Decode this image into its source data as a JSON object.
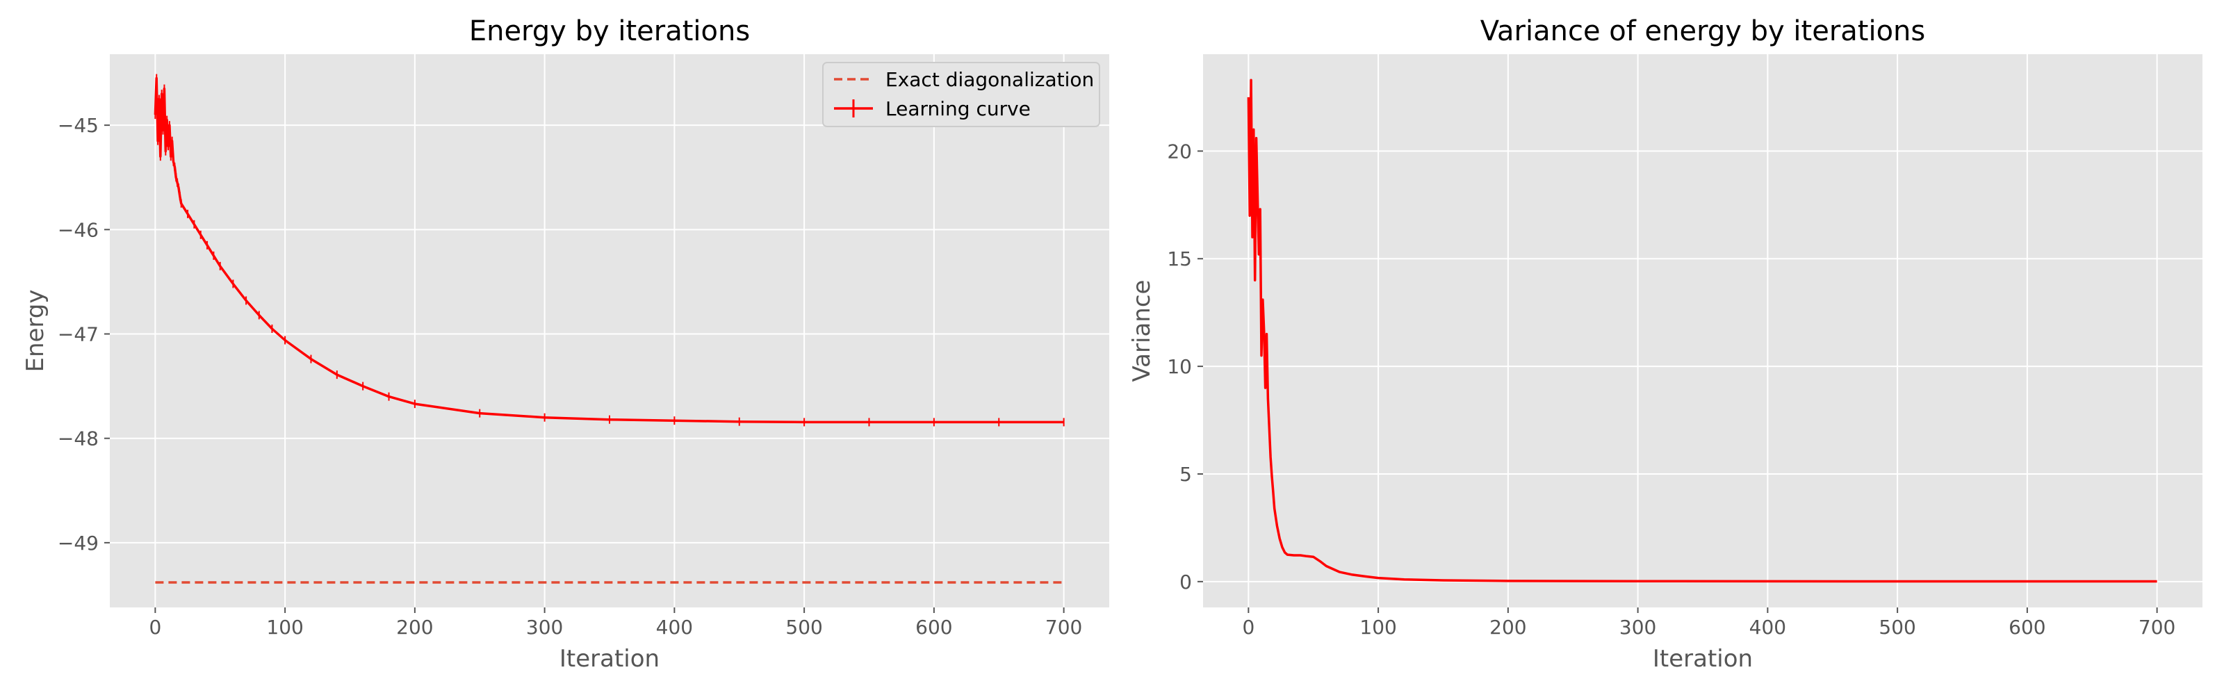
{
  "colors": {
    "plot_bg": "#e5e5e5",
    "grid": "#ffffff",
    "learning_curve": "#ff0000",
    "exact": "#e24a33",
    "tick_text": "#555555"
  },
  "chart_data": [
    {
      "type": "line",
      "title": "Energy by iterations",
      "xlabel": "Iteration",
      "ylabel": "Energy",
      "xlim": [
        -35,
        735
      ],
      "ylim": [
        -49.62,
        -44.32
      ],
      "xticks": [
        0,
        100,
        200,
        300,
        400,
        500,
        600,
        700
      ],
      "yticks": [
        -49,
        -48,
        -47,
        -46,
        -45
      ],
      "xtick_labels": [
        "0",
        "100",
        "200",
        "300",
        "400",
        "500",
        "600",
        "700"
      ],
      "ytick_labels": [
        "−49",
        "−48",
        "−47",
        "−46",
        "−45"
      ],
      "grid": true,
      "legend": {
        "placement": "top-right",
        "entries": [
          "Exact diagonalization",
          "Learning curve"
        ]
      },
      "series": [
        {
          "name": "Exact diagonalization",
          "style": "dashed",
          "color": "#e24a33",
          "x": [
            0,
            700
          ],
          "y": [
            -49.38,
            -49.38
          ]
        },
        {
          "name": "Learning curve",
          "style": "solid-with-errorbars",
          "color": "#ff0000",
          "x": [
            0,
            1,
            2,
            3,
            4,
            5,
            6,
            7,
            8,
            9,
            10,
            11,
            12,
            13,
            14,
            15,
            16,
            17,
            18,
            19,
            20,
            25,
            30,
            35,
            40,
            45,
            50,
            60,
            70,
            80,
            90,
            100,
            120,
            140,
            160,
            180,
            200,
            250,
            300,
            350,
            400,
            450,
            500,
            550,
            600,
            650,
            700
          ],
          "y": [
            -44.9,
            -44.55,
            -45.15,
            -44.75,
            -45.3,
            -44.7,
            -45.05,
            -44.65,
            -45.25,
            -44.95,
            -45.2,
            -45.0,
            -45.3,
            -45.15,
            -45.35,
            -45.4,
            -45.5,
            -45.55,
            -45.6,
            -45.68,
            -45.75,
            -45.85,
            -45.95,
            -46.05,
            -46.15,
            -46.25,
            -46.35,
            -46.52,
            -46.68,
            -46.82,
            -46.95,
            -47.06,
            -47.24,
            -47.39,
            -47.5,
            -47.6,
            -47.67,
            -47.76,
            -47.8,
            -47.82,
            -47.83,
            -47.84,
            -47.845,
            -47.845,
            -47.845,
            -47.845,
            -47.845
          ]
        }
      ]
    },
    {
      "type": "line",
      "title": "Variance of energy by iterations",
      "xlabel": "Iteration",
      "ylabel": "Variance",
      "xlim": [
        -35,
        735
      ],
      "ylim": [
        -1.2,
        24.5
      ],
      "xticks": [
        0,
        100,
        200,
        300,
        400,
        500,
        600,
        700
      ],
      "yticks": [
        0,
        5,
        10,
        15,
        20
      ],
      "xtick_labels": [
        "0",
        "100",
        "200",
        "300",
        "400",
        "500",
        "600",
        "700"
      ],
      "ytick_labels": [
        "0",
        "5",
        "10",
        "15",
        "20"
      ],
      "grid": true,
      "series": [
        {
          "color": "#ff0000",
          "style": "solid",
          "x": [
            0,
            1,
            2,
            3,
            4,
            5,
            6,
            7,
            8,
            9,
            10,
            11,
            12,
            13,
            14,
            15,
            16,
            17,
            18,
            19,
            20,
            22,
            24,
            26,
            28,
            30,
            35,
            40,
            45,
            50,
            55,
            60,
            70,
            80,
            90,
            100,
            120,
            150,
            200,
            300,
            400,
            500,
            600,
            700
          ],
          "y": [
            22.5,
            17.0,
            23.3,
            16.0,
            21.0,
            14.0,
            20.6,
            18.0,
            15.2,
            17.3,
            10.5,
            13.1,
            11.6,
            9.0,
            11.5,
            8.5,
            7.2,
            5.8,
            4.9,
            4.2,
            3.4,
            2.6,
            2.0,
            1.6,
            1.35,
            1.25,
            1.22,
            1.22,
            1.18,
            1.15,
            0.95,
            0.72,
            0.45,
            0.32,
            0.24,
            0.17,
            0.1,
            0.06,
            0.03,
            0.02,
            0.015,
            0.01,
            0.01,
            0.01
          ]
        }
      ]
    }
  ]
}
